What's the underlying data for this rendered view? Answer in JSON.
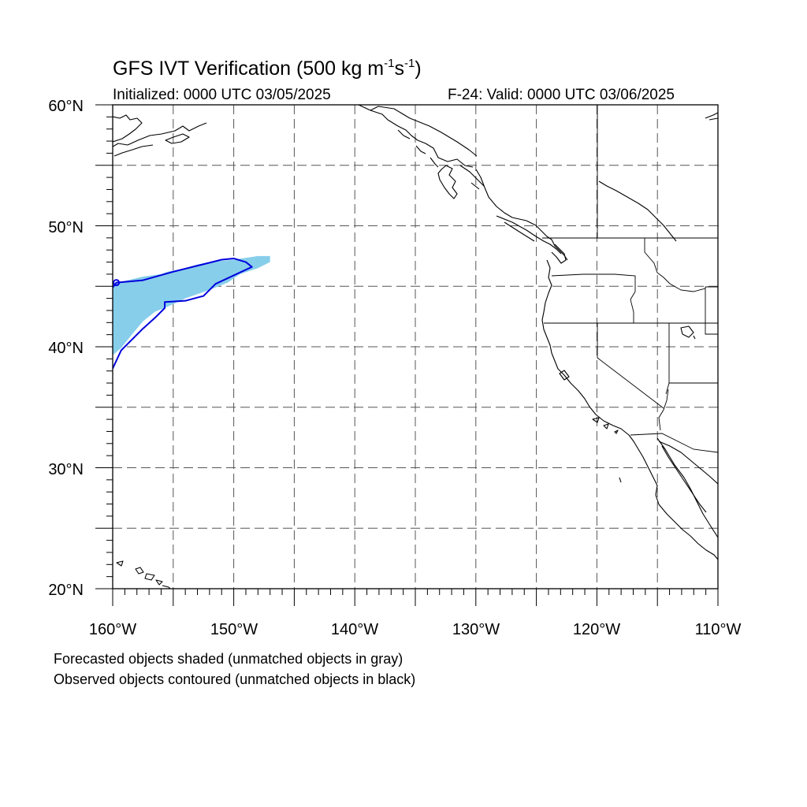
{
  "title": {
    "prefix": "GFS IVT Verification (500 kg m",
    "exp1": "-1",
    "mid": "s",
    "exp2": "-1",
    "suffix": ")"
  },
  "initialized": "Initialized: 0000 UTC 03/05/2025",
  "valid": "F-24: Valid: 0000 UTC 03/06/2025",
  "axes": {
    "lat_labels": [
      "60°N",
      "50°N",
      "40°N",
      "30°N",
      "20°N"
    ],
    "lon_labels": [
      "160°W",
      "150°W",
      "140°W",
      "130°W",
      "120°W",
      "110°W"
    ],
    "lon_range": [
      -160,
      -110
    ],
    "lat_range": [
      20,
      60
    ],
    "grid": "dashed, every 5 degrees"
  },
  "legend": {
    "line1": "Forecasted objects shaded (unmatched objects in gray)",
    "line2": "Observed objects contoured (unmatched objects in black)"
  },
  "colors": {
    "forecast_fill": "#87ceeb",
    "observed_contour": "#0000dd",
    "coastline": "#000000",
    "grid": "#555555"
  },
  "objects": {
    "forecast": {
      "label": "matched forecast object",
      "lonlat": [
        [
          -160,
          45.2
        ],
        [
          -157.5,
          45.8
        ],
        [
          -156,
          46
        ],
        [
          -155.5,
          46.2
        ],
        [
          -154,
          46.5
        ],
        [
          -153,
          46.8
        ],
        [
          -152,
          47
        ],
        [
          -150,
          47.2
        ],
        [
          -148,
          47.5
        ],
        [
          -147,
          47.5
        ],
        [
          -147,
          47
        ],
        [
          -148,
          46.5
        ],
        [
          -149.5,
          46
        ],
        [
          -150.5,
          45.3
        ],
        [
          -152,
          44.7
        ],
        [
          -154,
          44
        ],
        [
          -155.5,
          43.3
        ],
        [
          -156.5,
          42.9
        ],
        [
          -157.5,
          42.1
        ],
        [
          -158.5,
          40.9
        ],
        [
          -159.3,
          39.9
        ],
        [
          -160,
          39.3
        ]
      ]
    },
    "observed": {
      "label": "matched observed object",
      "lonlat": [
        [
          -160,
          44.9
        ],
        [
          -159.7,
          45.3
        ],
        [
          -157.5,
          45.5
        ],
        [
          -155,
          46.2
        ],
        [
          -153,
          46.7
        ],
        [
          -151,
          47.2
        ],
        [
          -150,
          47.3
        ],
        [
          -149,
          47
        ],
        [
          -148.5,
          46.6
        ],
        [
          -150,
          45.9
        ],
        [
          -151.5,
          45.2
        ],
        [
          -152.5,
          44.2
        ],
        [
          -154,
          43.8
        ],
        [
          -155.7,
          43.7
        ],
        [
          -155.7,
          43.2
        ],
        [
          -156.5,
          42.4
        ],
        [
          -157.5,
          41.5
        ],
        [
          -158.5,
          40.5
        ],
        [
          -159.3,
          39.7
        ],
        [
          -160,
          38.2
        ]
      ]
    }
  }
}
